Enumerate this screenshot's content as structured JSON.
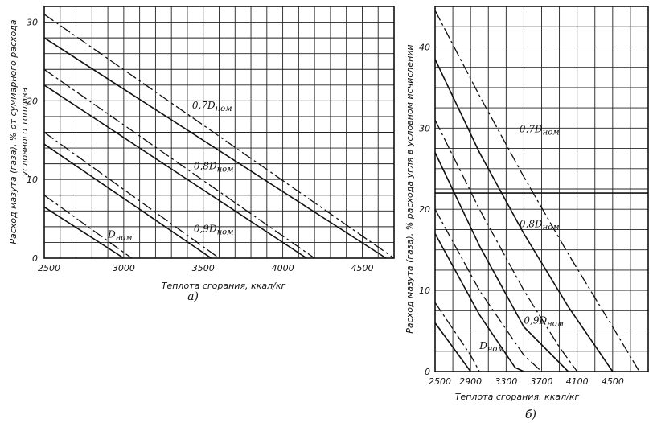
{
  "chart_data": [
    {
      "id": "a",
      "type": "line",
      "panel_label": "а)",
      "xlabel": "Теплота сгорания, ккал/кг",
      "ylabel_line1": "Расход мазута (газа), % от суммарного расхода",
      "ylabel_line2": "условного топлива",
      "xlim": [
        2500,
        4700
      ],
      "ylim": [
        0,
        32
      ],
      "x_ticks": [
        2500,
        3000,
        3500,
        4000,
        4500
      ],
      "y_ticks": [
        0,
        10,
        20,
        30
      ],
      "grid": true,
      "grid_x_step": 100,
      "grid_y_step": 2,
      "series": [
        {
          "style": "dashed",
          "points": [
            [
              2500,
              31
            ],
            [
              4700,
              0
            ]
          ]
        },
        {
          "style": "solid",
          "points": [
            [
              2500,
              28
            ],
            [
              4650,
              0
            ]
          ]
        },
        {
          "style": "dashed",
          "points": [
            [
              2500,
              24
            ],
            [
              4200,
              0
            ]
          ]
        },
        {
          "style": "solid",
          "points": [
            [
              2500,
              22
            ],
            [
              4150,
              0
            ]
          ]
        },
        {
          "style": "dashed",
          "points": [
            [
              2500,
              16
            ],
            [
              3600,
              0
            ]
          ]
        },
        {
          "style": "solid",
          "points": [
            [
              2500,
              14.5
            ],
            [
              3550,
              0
            ]
          ]
        },
        {
          "style": "dashed",
          "points": [
            [
              2500,
              8
            ],
            [
              3050,
              0
            ]
          ]
        },
        {
          "style": "solid",
          "points": [
            [
              2500,
              6.5
            ],
            [
              3000,
              0
            ]
          ]
        }
      ],
      "curve_labels": [
        {
          "main": "0,7D",
          "sub": "ном",
          "x": 3430,
          "y": 19.0
        },
        {
          "main": "0,8D",
          "sub": "ном",
          "x": 3440,
          "y": 11.3
        },
        {
          "main": "0,9D",
          "sub": "ном",
          "x": 3440,
          "y": 3.3
        },
        {
          "main": "D",
          "sub": "ном",
          "x": 2900,
          "y": 2.6
        }
      ]
    },
    {
      "id": "b",
      "type": "line",
      "panel_label": "б)",
      "xlabel": "Теплота сгорания, ккал/кг",
      "ylabel_line1": "Расход мазута (газа), % расхода  угля в условном исчислении",
      "xlim": [
        2500,
        4900
      ],
      "ylim": [
        0,
        45
      ],
      "x_ticks": [
        2500,
        2900,
        3300,
        3700,
        4100,
        4500
      ],
      "y_ticks": [
        0,
        10,
        20,
        30,
        40
      ],
      "grid": true,
      "grid_x_step": 200,
      "grid_y_step": 2.5,
      "reference_line_y": 22,
      "series": [
        {
          "style": "dashed",
          "points": [
            [
              2500,
              44.5
            ],
            [
              3000,
              34
            ],
            [
              3500,
              24
            ],
            [
              4000,
              14.5
            ],
            [
              4500,
              5.5
            ],
            [
              4800,
              0
            ]
          ]
        },
        {
          "style": "solid",
          "points": [
            [
              2500,
              38.5
            ],
            [
              3000,
              27
            ],
            [
              3500,
              17
            ],
            [
              4000,
              8
            ],
            [
              4500,
              0
            ]
          ]
        },
        {
          "style": "dashed",
          "points": [
            [
              2500,
              31
            ],
            [
              3000,
              20
            ],
            [
              3500,
              10
            ],
            [
              3900,
              3
            ],
            [
              4100,
              0
            ]
          ]
        },
        {
          "style": "solid",
          "points": [
            [
              2500,
              27
            ],
            [
              3000,
              15.5
            ],
            [
              3500,
              5.5
            ],
            [
              4000,
              0
            ]
          ]
        },
        {
          "style": "dashed",
          "points": [
            [
              2500,
              20
            ],
            [
              3000,
              10
            ],
            [
              3500,
              2
            ],
            [
              3700,
              0
            ]
          ]
        },
        {
          "style": "solid",
          "points": [
            [
              2500,
              17
            ],
            [
              3000,
              7
            ],
            [
              3400,
              0.5
            ],
            [
              3500,
              0
            ]
          ]
        },
        {
          "style": "dashed",
          "points": [
            [
              2500,
              8.5
            ],
            [
              2900,
              2
            ],
            [
              3000,
              0
            ]
          ]
        },
        {
          "style": "solid",
          "points": [
            [
              2500,
              6
            ],
            [
              2900,
              0
            ]
          ]
        }
      ],
      "curve_labels": [
        {
          "main": "0,7D",
          "sub": "ном",
          "x": 3450,
          "y": 29.5
        },
        {
          "main": "0,8D",
          "sub": "ном",
          "x": 3450,
          "y": 17.8
        },
        {
          "main": "0,9D",
          "sub": "ном",
          "x": 3500,
          "y": 5.9
        },
        {
          "main": "D",
          "sub": "ном",
          "x": 3000,
          "y": 2.8
        }
      ]
    }
  ]
}
